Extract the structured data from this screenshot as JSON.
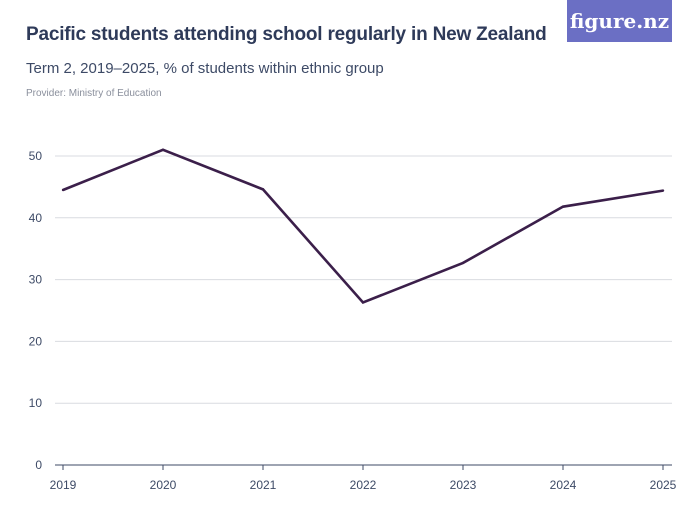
{
  "header": {
    "title": "Pacific students attending school regularly in New Zealand",
    "subtitle": "Term 2, 2019–2025, % of students within ethnic group",
    "provider": "Provider: Ministry of Education"
  },
  "logo": {
    "text": "figure.nz",
    "color": "#6b6fc4"
  },
  "chart_data": {
    "type": "line",
    "title": "Pacific students attending school regularly in New Zealand",
    "subtitle": "Term 2, 2019–2025, % of students within ethnic group",
    "xlabel": "",
    "ylabel": "",
    "categories": [
      "2019",
      "2020",
      "2021",
      "2022",
      "2023",
      "2024",
      "2025"
    ],
    "series": [
      {
        "name": "Pacific students",
        "values": [
          44.5,
          51.0,
          44.6,
          26.3,
          32.7,
          41.8,
          44.4
        ],
        "color": "#3b1f4a"
      }
    ],
    "yticks": [
      "0",
      "10",
      "20",
      "30",
      "40",
      "50"
    ],
    "ylim": [
      0,
      50
    ],
    "grid": true
  }
}
